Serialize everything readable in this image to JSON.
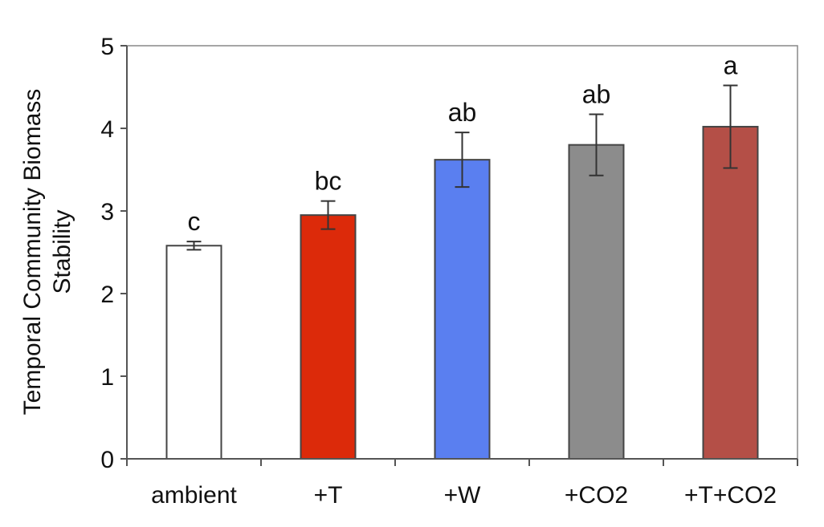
{
  "chart_data": {
    "type": "bar",
    "title": "",
    "xlabel": "",
    "ylabel_lines": [
      "Temporal Community Biomass",
      "Stability"
    ],
    "ylim": [
      0,
      5
    ],
    "yticks": [
      0,
      1,
      2,
      3,
      4,
      5
    ],
    "grid": false,
    "legend": "none",
    "categories": [
      "ambient",
      "+T",
      "+W",
      "+CO2",
      "+T+CO2"
    ],
    "values": [
      2.58,
      2.95,
      3.62,
      3.8,
      4.02
    ],
    "error": [
      0.05,
      0.17,
      0.33,
      0.37,
      0.5
    ],
    "significance": [
      "c",
      "bc",
      "ab",
      "ab",
      "a"
    ],
    "colors": [
      "#ffffff",
      "#dc2a0a",
      "#5a7ff0",
      "#8c8c8c",
      "#b44f47"
    ]
  }
}
